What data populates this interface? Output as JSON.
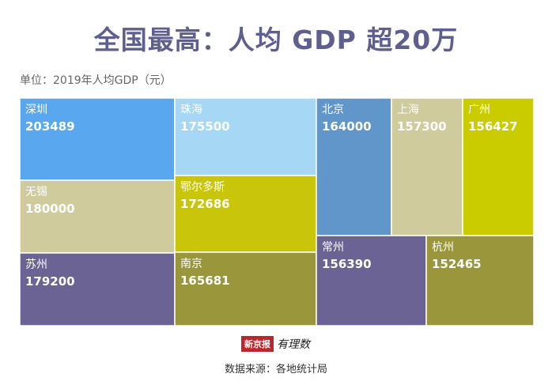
{
  "header": {
    "title": "全国最高：人均 GDP 超20万",
    "unit": "单位：2019年人均GDP（元）"
  },
  "footer": {
    "logo_text": "新京报",
    "logo_script": "有理数",
    "source": "数据来源：各地统计局"
  },
  "chart_data": {
    "type": "treemap",
    "title": "全国最高：人均 GDP 超20万",
    "unit_label": "单位：2019年人均GDP（元）",
    "items": [
      {
        "name": "深圳",
        "value": 203489,
        "color": "#59a8ef"
      },
      {
        "name": "无锡",
        "value": 180000,
        "color": "#cfcb9c"
      },
      {
        "name": "苏州",
        "value": 179200,
        "color": "#6a6394"
      },
      {
        "name": "珠海",
        "value": 175500,
        "color": "#a6d8f5"
      },
      {
        "name": "鄂尔多斯",
        "value": 172686,
        "color": "#c9c50a"
      },
      {
        "name": "南京",
        "value": 165681,
        "color": "#99963b"
      },
      {
        "name": "北京",
        "value": 164000,
        "color": "#6196cb"
      },
      {
        "name": "上海",
        "value": 157300,
        "color": "#cfcb9c"
      },
      {
        "name": "广州",
        "value": 156427,
        "color": "#cbcc00"
      },
      {
        "name": "常州",
        "value": 156390,
        "color": "#6a6394"
      },
      {
        "name": "杭州",
        "value": 152465,
        "color": "#99963b"
      }
    ]
  }
}
